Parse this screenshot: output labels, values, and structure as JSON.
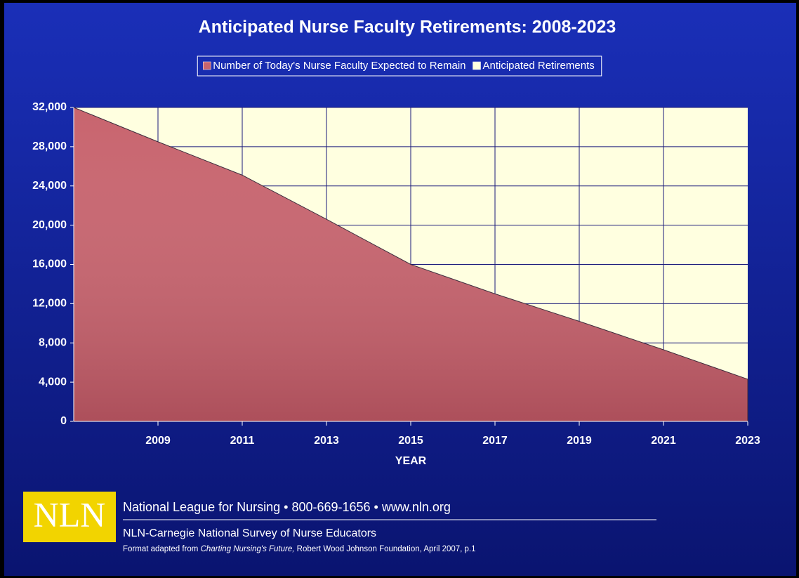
{
  "chart_data": {
    "type": "stacked_area",
    "title": "Anticipated Nurse Faculty Retirements: 2008-2023",
    "x_label": "YEAR",
    "x": [
      2007,
      2009,
      2011,
      2013,
      2015,
      2017,
      2019,
      2021,
      2023
    ],
    "series": [
      {
        "name": "Number of Today's Nurse Faculty Expected to Remain",
        "color": "#c8646e",
        "values": [
          32000,
          28500,
          25100,
          20600,
          16000,
          13000,
          10200,
          7300,
          4300
        ]
      },
      {
        "name": "Anticipated Retirements",
        "color": "#ffffe0",
        "values": [
          0,
          3500,
          6900,
          11400,
          16000,
          19000,
          21800,
          24700,
          27700
        ]
      }
    ],
    "xlim": [
      2007,
      2023
    ],
    "xticks": [
      2009,
      2011,
      2013,
      2015,
      2017,
      2019,
      2021,
      2023
    ],
    "ylim": [
      0,
      32000
    ],
    "yticks": [
      0,
      {
        "value": 4000,
        "label": "4,000"
      },
      {
        "value": 8000,
        "label": "8,000"
      },
      {
        "value": 12000,
        "label": "12,000"
      },
      {
        "value": 16000,
        "label": "16,000"
      },
      {
        "value": 20000,
        "label": "20,000"
      },
      {
        "value": 24000,
        "label": "24,000"
      },
      {
        "value": 28000,
        "label": "28,000"
      },
      {
        "value": 32000,
        "label": "32,000"
      }
    ],
    "grid": true,
    "legend_position": "top"
  },
  "footer": {
    "logo": "NLN",
    "contact": "National League for Nursing • 800-669-1656 • www.nln.org",
    "survey": "NLN-Carnegie National Survey of Nurse Educators",
    "source_prefix": "Format adapted from ",
    "source_title": "Charting Nursing's Future,",
    "source_suffix": " Robert Wood Johnson Foundation, April 2007, p.1"
  }
}
